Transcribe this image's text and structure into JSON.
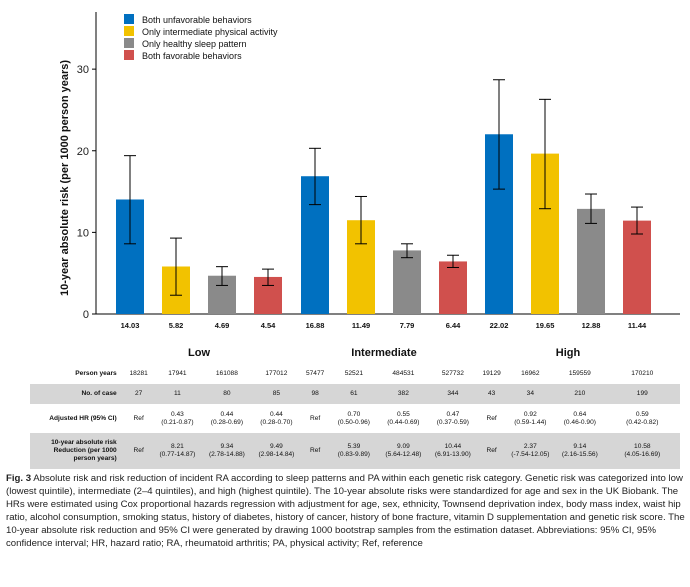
{
  "chart_data": {
    "type": "bar",
    "ylabel": "10-year absolute risk (per 1000 person years)",
    "ylim": [
      0,
      37
    ],
    "yticks": [
      0,
      10,
      20,
      30
    ],
    "grid": false,
    "legend_position": "top-left",
    "groups": [
      "Low",
      "Intermediate",
      "High"
    ],
    "series": [
      {
        "name": "Both unfavorable behaviors",
        "color": "#0070c0",
        "values": [
          14.03,
          16.88,
          22.02
        ],
        "ci_low": [
          8.6,
          13.4,
          15.3
        ],
        "ci_high": [
          19.4,
          20.3,
          28.7
        ],
        "labels": [
          "14.03",
          "16.88",
          "22.02"
        ]
      },
      {
        "name": "Only intermediate physical activity",
        "color": "#f2c200",
        "values": [
          5.82,
          11.49,
          19.65
        ],
        "ci_low": [
          2.3,
          8.6,
          12.9
        ],
        "ci_high": [
          9.3,
          14.4,
          26.3
        ],
        "labels": [
          "5.82",
          "11.49",
          "19.65"
        ]
      },
      {
        "name": "Only healthy sleep pattern",
        "color": "#8a8a8a",
        "values": [
          4.69,
          7.79,
          12.88
        ],
        "ci_low": [
          3.5,
          6.9,
          11.1
        ],
        "ci_high": [
          5.8,
          8.6,
          14.7
        ],
        "labels": [
          "4.69",
          "7.79",
          "12.88"
        ]
      },
      {
        "name": "Both favorable behaviors",
        "color": "#d0504d",
        "values": [
          4.54,
          6.44,
          11.44
        ],
        "ci_low": [
          3.5,
          5.7,
          9.8
        ],
        "ci_high": [
          5.5,
          7.2,
          13.1
        ],
        "labels": [
          "4.54",
          "6.44",
          "11.44"
        ]
      }
    ]
  },
  "table": {
    "rows": [
      {
        "label": "Person years",
        "shaded": false,
        "cells": [
          [
            "18281"
          ],
          [
            "17941"
          ],
          [
            "161088"
          ],
          [
            "177012"
          ],
          [
            "57477"
          ],
          [
            "52521"
          ],
          [
            "484531"
          ],
          [
            "527732"
          ],
          [
            "19129"
          ],
          [
            "16962"
          ],
          [
            "159559"
          ],
          [
            "170210"
          ]
        ]
      },
      {
        "label": "No. of case",
        "shaded": true,
        "cells": [
          [
            "27"
          ],
          [
            "11"
          ],
          [
            "80"
          ],
          [
            "85"
          ],
          [
            "98"
          ],
          [
            "61"
          ],
          [
            "382"
          ],
          [
            "344"
          ],
          [
            "43"
          ],
          [
            "34"
          ],
          [
            "210"
          ],
          [
            "199"
          ]
        ]
      },
      {
        "label": "Adjusted HR (95% CI)",
        "shaded": false,
        "cells": [
          [
            "Ref"
          ],
          [
            "0.43",
            "(0.21-0.87)"
          ],
          [
            "0.44",
            "(0.28-0.69)"
          ],
          [
            "0.44",
            "(0.28-0.70)"
          ],
          [
            "Ref"
          ],
          [
            "0.70",
            "(0.50-0.96)"
          ],
          [
            "0.55",
            "(0.44-0.69)"
          ],
          [
            "0.47",
            "(0.37-0.59)"
          ],
          [
            "Ref"
          ],
          [
            "0.92",
            "(0.59-1.44)"
          ],
          [
            "0.64",
            "(0.46-0.90)"
          ],
          [
            "0.59",
            "(0.42-0.82)"
          ]
        ]
      },
      {
        "label": "10-year absolute risk Reduction (per 1000 person years)",
        "shaded": true,
        "cells": [
          [
            "Ref"
          ],
          [
            "8.21",
            "(0.77-14.87)"
          ],
          [
            "9.34",
            "(2.78-14.88)"
          ],
          [
            "9.49",
            "(2.98-14.84)"
          ],
          [
            "Ref"
          ],
          [
            "5.39",
            "(0.83-9.89)"
          ],
          [
            "9.09",
            "(5.64-12.48)"
          ],
          [
            "10.44",
            "(6.91-13.90)"
          ],
          [
            "Ref"
          ],
          [
            "2.37",
            "(-7.54-12.05)"
          ],
          [
            "9.14",
            "(2.16-15.56)"
          ],
          [
            "10.58",
            "(4.05-16.69)"
          ]
        ]
      }
    ]
  },
  "caption": {
    "label": "Fig. 3",
    "text": "Absolute risk and risk reduction of incident RA according to sleep patterns and PA within each genetic risk category. Genetic risk was categorized into low (lowest quintile), intermediate (2–4 quintiles), and high (highest quintile). The 10-year absolute risks were standardized for age and sex in the UK Biobank. The HRs were estimated using Cox proportional hazards regression with adjustment for age, sex, ethnicity, Townsend deprivation index, body mass index, waist hip ratio, alcohol consumption, smoking status, history of diabetes, history of cancer, history of bone fracture, vitamin D supplementation and genetic risk score. The 10-year absolute risk reduction and 95% CI were generated by drawing 1000 bootstrap samples from the estimation dataset. Abbreviations: 95% CI, 95% confidence interval; HR, hazard ratio; RA, rheumatoid arthritis; PA, physical activity; Ref, reference"
  }
}
